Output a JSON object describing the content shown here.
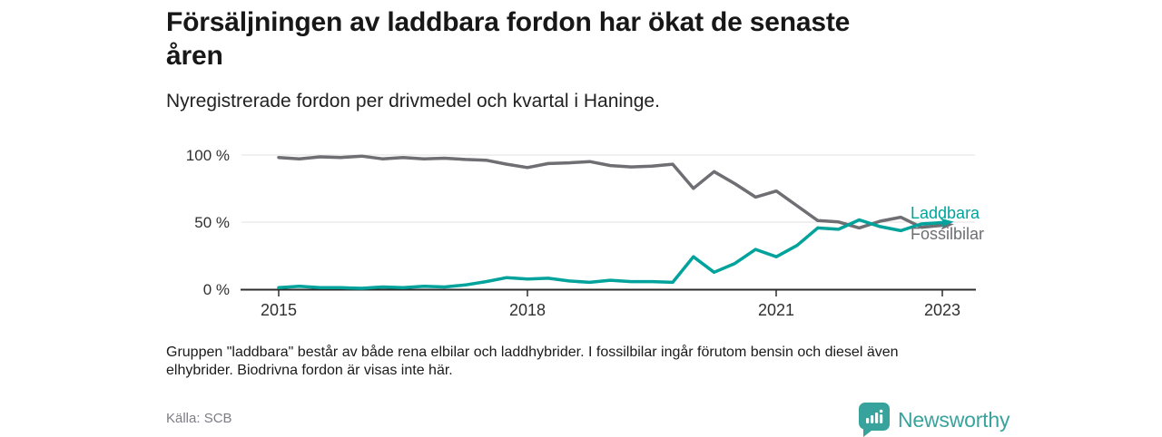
{
  "header": {
    "title_lines": [
      "Försäljningen av laddbara fordon har ökat de senaste",
      "åren"
    ],
    "subtitle": "Nyregistrerade fordon per drivmedel och kvartal i Haninge."
  },
  "chart_data": {
    "type": "line",
    "title": "Försäljningen av laddbara fordon har ökat de senaste åren",
    "subtitle": "Nyregistrerade fordon per drivmedel och kvartal i Haninge.",
    "x_unit": "quarter",
    "x_start": "2015 Q1",
    "x_end": "2023 Q1",
    "x_tick_labels": [
      "2015",
      "2018",
      "2021",
      "2023"
    ],
    "x_tick_quarter_indices": [
      0,
      12,
      24,
      32
    ],
    "y_tick_labels": [
      "100 %",
      "50 %",
      "0 %"
    ],
    "ylim": [
      0,
      100
    ],
    "grid": "horizontal",
    "legend_position": "line-end-labels",
    "series": [
      {
        "name": "Laddbara",
        "color": "#00a39b",
        "values": [
          1.5,
          2.5,
          1.5,
          1.5,
          1.0,
          2.0,
          1.5,
          2.5,
          2.0,
          3.5,
          6.0,
          9.0,
          8.0,
          8.5,
          6.5,
          5.5,
          7.0,
          6.0,
          6.0,
          5.5,
          24.5,
          13.0,
          19.5,
          30.0,
          24.5,
          33.0,
          46.0,
          45.0,
          52.0,
          47.0,
          44.0,
          49.0,
          50.0
        ]
      },
      {
        "name": "Fossilbilar",
        "color": "#6e6e73",
        "values": [
          98.5,
          97.5,
          99.0,
          98.5,
          99.5,
          97.5,
          98.5,
          97.5,
          98.0,
          97.0,
          96.5,
          93.5,
          91.0,
          94.0,
          94.5,
          95.5,
          92.5,
          91.5,
          92.0,
          93.5,
          75.5,
          88.0,
          79.0,
          69.0,
          73.5,
          62.5,
          51.5,
          50.5,
          46.0,
          51.0,
          54.0,
          46.5,
          48.0
        ]
      }
    ],
    "colors": {
      "accent_teal": "#00a39b",
      "line_gray": "#6e6e73",
      "grid": "#e0e0e0",
      "axis": "#2d2d2d"
    }
  },
  "footer": {
    "note_lines": [
      "Gruppen \"laddbara\" består av både rena elbilar och laddhybrider. I fossilbilar ingår förutom bensin och diesel även",
      "elhybrider. Biodrivna fordon är visas inte här."
    ],
    "source": "Källa: SCB",
    "brand": "Newsworthy"
  }
}
